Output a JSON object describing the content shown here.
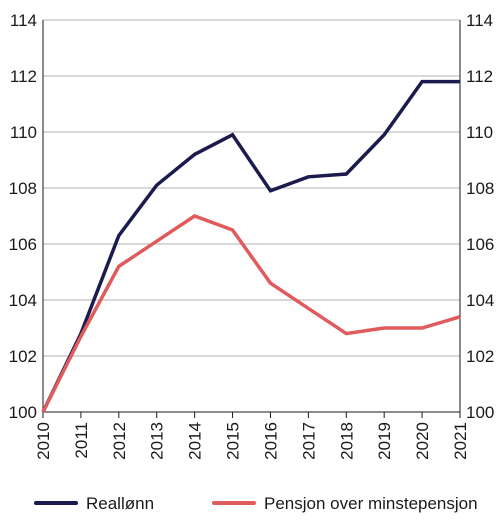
{
  "chart_data": {
    "type": "line",
    "title": "",
    "xlabel": "",
    "ylabel": "",
    "x": [
      "2010",
      "2011",
      "2012",
      "2013",
      "2014",
      "2015",
      "2016",
      "2017",
      "2018",
      "2019",
      "2020",
      "2021"
    ],
    "ylim": [
      100,
      114
    ],
    "yticks": [
      100,
      102,
      104,
      106,
      108,
      110,
      112,
      114
    ],
    "grid": true,
    "legend_position": "bottom",
    "series": [
      {
        "name": "Reallønn",
        "color": "#1b1b4d",
        "values": [
          100,
          102.8,
          106.3,
          108.1,
          109.2,
          109.9,
          107.9,
          108.4,
          108.5,
          109.9,
          111.8,
          111.8
        ]
      },
      {
        "name": "Pensjon over minstepensjon",
        "color": "#e05c5c",
        "values": [
          100,
          102.7,
          105.2,
          106.1,
          107.0,
          106.5,
          104.6,
          103.7,
          102.8,
          103.0,
          103.0,
          103.4
        ]
      }
    ]
  }
}
